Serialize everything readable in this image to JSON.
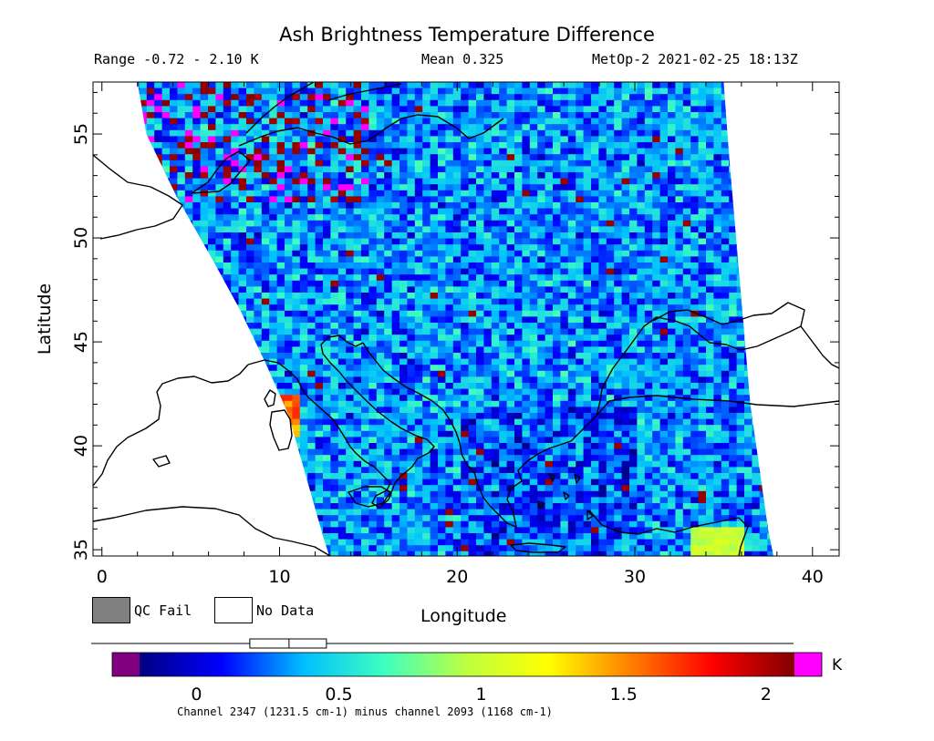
{
  "header": {
    "title": "Ash Brightness Temperature Difference",
    "range": "Range -0.72 - 2.10 K",
    "mean": "Mean 0.325",
    "satellite_time": "MetOp-2 2021-02-25 18:13Z"
  },
  "map": {
    "xlabel": "Longitude",
    "ylabel": "Latitude",
    "lon_range": [
      -0.5,
      41.5
    ],
    "lat_range": [
      34.7,
      57.5
    ],
    "xticks": [
      0,
      10,
      20,
      30,
      40
    ],
    "yticks": [
      35,
      40,
      45,
      50,
      55
    ],
    "swath": "single MetOp orbit swath, left edge curving from about 2°E at 55°N to 12.5°E at 35°N, right edge from about 35°E at 57°N to 37.5°E at 35°N",
    "background": "#ffffff",
    "coastline_color": "#000000",
    "hotspot_note": "Elevated values (up to ~1.7 K) near Sardinia / Tyrrhenian Sea around 10°E, 41-42°N"
  },
  "legend": {
    "qc_fail_label": "QC Fail",
    "qc_fail_color": "#808080",
    "no_data_label": "No Data",
    "no_data_color": "#ffffff"
  },
  "colorbar": {
    "unit": "K",
    "ticks": [
      "0",
      "0.5",
      "1",
      "1.5",
      "2"
    ],
    "tick_values": [
      0,
      0.5,
      1,
      1.5,
      2
    ],
    "vmin": -0.2,
    "vmax": 2.1,
    "underflow_color": "#800080",
    "overflow_color": "#ff00ff",
    "stops": [
      "#000080",
      "#0000ff",
      "#00bfff",
      "#3fffbf",
      "#bfff3f",
      "#ffff00",
      "#ff7f00",
      "#ff0000",
      "#800000"
    ],
    "mean_marker": 0.325,
    "range_min": -0.72,
    "range_max": 2.1
  },
  "footnote": "Channel 2347 (1231.5 cm-1) minus channel 2093 (1168 cm-1)"
}
